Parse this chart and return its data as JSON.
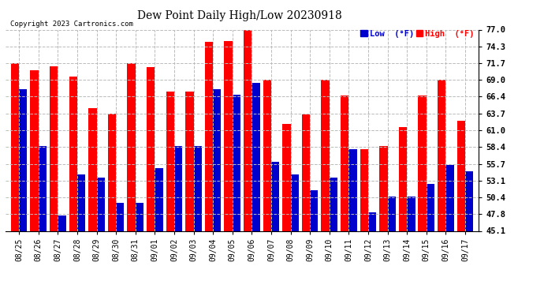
{
  "title": "Dew Point Daily High/Low 20230918",
  "copyright": "Copyright 2023 Cartronics.com",
  "legend_low": "Low  (°F)",
  "legend_high": "High  (°F)",
  "background_color": "#ffffff",
  "bar_color_high": "#ff0000",
  "bar_color_low": "#0000cc",
  "grid_color": "#bbbbbb",
  "yticks": [
    45.1,
    47.8,
    50.4,
    53.1,
    55.7,
    58.4,
    61.0,
    63.7,
    66.4,
    69.0,
    71.7,
    74.3,
    77.0
  ],
  "ylim": [
    45.1,
    77.0
  ],
  "dates": [
    "08/25",
    "08/26",
    "08/27",
    "08/28",
    "08/29",
    "08/30",
    "08/31",
    "09/01",
    "09/02",
    "09/03",
    "09/04",
    "09/05",
    "09/06",
    "09/07",
    "09/08",
    "09/09",
    "09/10",
    "09/11",
    "09/12",
    "09/13",
    "09/14",
    "09/15",
    "09/16",
    "09/17"
  ],
  "high": [
    71.7,
    70.5,
    71.2,
    69.5,
    64.5,
    63.7,
    71.7,
    71.0,
    67.2,
    67.2,
    75.0,
    75.2,
    77.0,
    69.0,
    62.0,
    63.5,
    69.0,
    66.5,
    58.0,
    58.5,
    61.5,
    66.5,
    69.0,
    62.5
  ],
  "low": [
    67.5,
    58.5,
    47.5,
    54.0,
    53.5,
    49.5,
    49.5,
    55.0,
    58.5,
    58.5,
    67.5,
    66.7,
    68.5,
    56.0,
    54.0,
    51.5,
    53.5,
    58.0,
    48.0,
    50.5,
    50.5,
    52.5,
    55.5,
    54.5
  ]
}
